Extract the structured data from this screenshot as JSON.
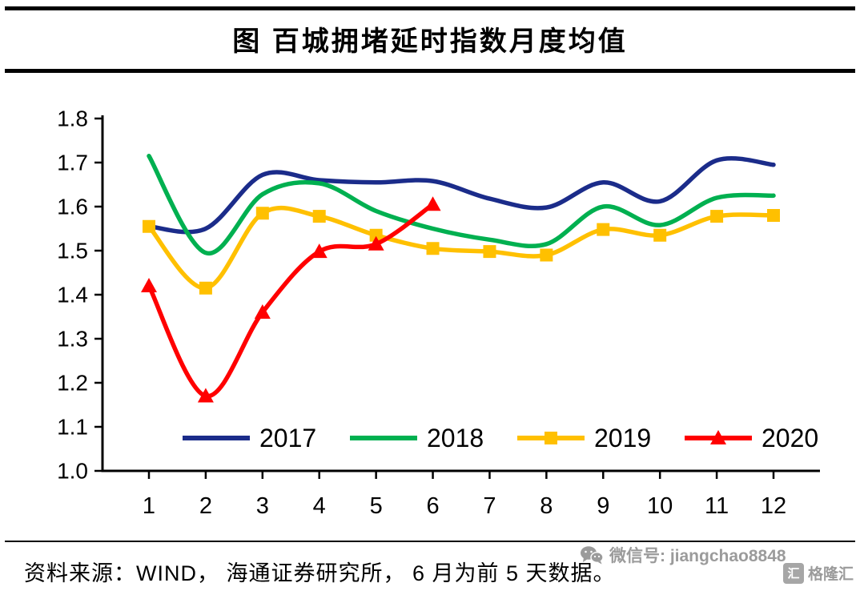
{
  "title": "图   百城拥堵延时指数月度均值",
  "footer": {
    "source": "资料来源：WIND， 海通证券研究所， 6 月为前 5 天数据。"
  },
  "watermark": {
    "wechat_label": "微信号: jiangchao8848",
    "logo_label": "格隆汇",
    "logo_icon_char": "汇"
  },
  "chart_data": {
    "type": "line",
    "title": "百城拥堵延时指数月度均值",
    "x": [
      1,
      2,
      3,
      4,
      5,
      6,
      7,
      8,
      9,
      10,
      11,
      12
    ],
    "xticks": [
      1,
      2,
      3,
      4,
      5,
      6,
      7,
      8,
      9,
      10,
      11,
      12
    ],
    "ylim": [
      1.0,
      1.8
    ],
    "yticks": [
      1.0,
      1.1,
      1.2,
      1.3,
      1.4,
      1.5,
      1.6,
      1.7,
      1.8
    ],
    "grid": false,
    "legend_position": "bottom-inside",
    "series": [
      {
        "name": "2017",
        "color": "#1b2c8a",
        "marker": "none",
        "values": [
          1.555,
          1.55,
          1.672,
          1.66,
          1.655,
          1.658,
          1.618,
          1.598,
          1.655,
          1.612,
          1.705,
          1.695
        ]
      },
      {
        "name": "2018",
        "color": "#00b050",
        "marker": "none",
        "values": [
          1.715,
          1.495,
          1.628,
          1.653,
          1.59,
          1.55,
          1.525,
          1.515,
          1.6,
          1.558,
          1.62,
          1.625
        ]
      },
      {
        "name": "2019",
        "color": "#ffc000",
        "marker": "square",
        "values": [
          1.555,
          1.415,
          1.585,
          1.578,
          1.535,
          1.505,
          1.498,
          1.49,
          1.548,
          1.535,
          1.578,
          1.58
        ]
      },
      {
        "name": "2020",
        "color": "#ff0000",
        "marker": "triangle",
        "values": [
          1.42,
          1.17,
          1.36,
          1.498,
          1.515,
          1.605
        ]
      }
    ]
  }
}
